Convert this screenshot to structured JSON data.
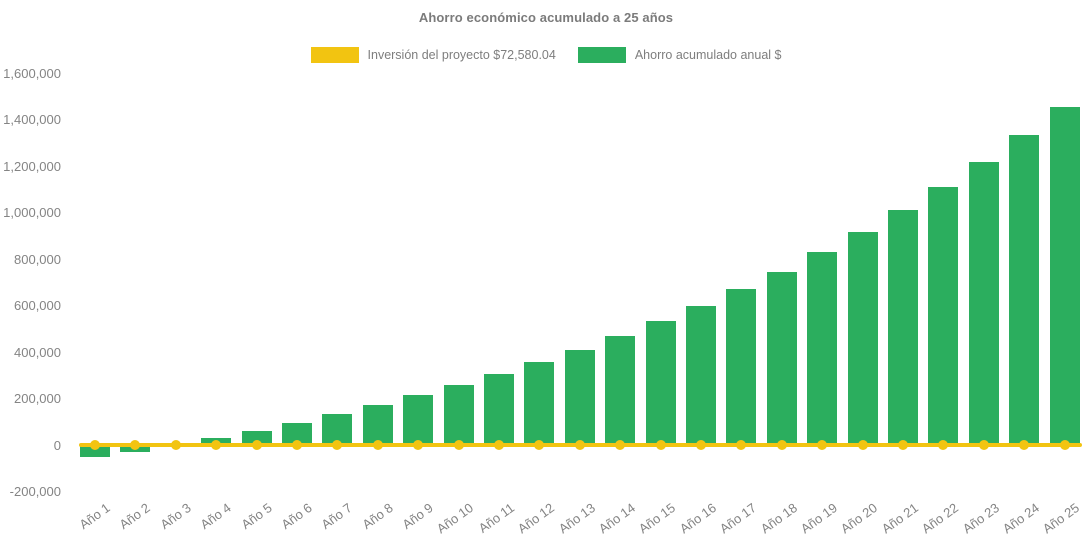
{
  "page": {
    "background": "#ffffff"
  },
  "colors": {
    "bar_green": "#2BAE5E",
    "line_yellow": "#F2C411",
    "label_gray": "#848484",
    "title_gray": "#7B7B7B"
  },
  "chart_data": {
    "type": "bar",
    "title": "Ahorro económico acumulado a 25 años",
    "xlabel": "",
    "ylabel": "",
    "legend_position": "top",
    "grid": false,
    "ylim": [
      -200000,
      1600000
    ],
    "ytick_step": 200000,
    "categories": [
      "Año 1",
      "Año 2",
      "Año 3",
      "Año 4",
      "Año 5",
      "Año 6",
      "Año 7",
      "Año 8",
      "Año 9",
      "Año 10",
      "Año 11",
      "Año 12",
      "Año 13",
      "Año 14",
      "Año 15",
      "Año 16",
      "Año 17",
      "Año 18",
      "Año 19",
      "Año 20",
      "Año 21",
      "Año 22",
      "Año 23",
      "Año 24",
      "Año 25"
    ],
    "series": [
      {
        "name": "Inversión del proyecto $72,580.04",
        "type": "line",
        "color": "#F2C411",
        "marker": "circle",
        "value_constant": 0
      },
      {
        "name": "Ahorro acumulado anual $",
        "type": "bar",
        "color": "#2BAE5E",
        "values": [
          -52000,
          -28000,
          -5000,
          28000,
          60000,
          93000,
          135000,
          172000,
          214000,
          260000,
          307000,
          356000,
          408000,
          470000,
          533000,
          598000,
          670000,
          745000,
          828000,
          915000,
          1010000,
          1110000,
          1218000,
          1332000,
          1455000
        ]
      }
    ]
  }
}
